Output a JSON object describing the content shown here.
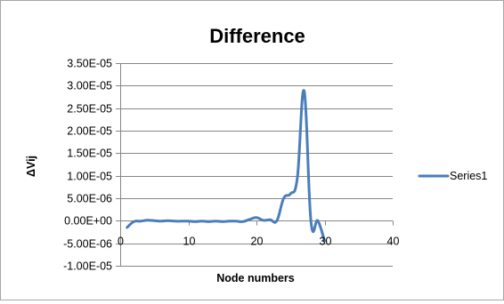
{
  "chart_data": {
    "type": "line",
    "title": "Difference",
    "xlabel": "Node numbers",
    "ylabel": "ΔVij",
    "xlim": [
      0,
      40
    ],
    "ylim": [
      -1e-05,
      3.5e-05
    ],
    "x_ticks": [
      0,
      10,
      20,
      30,
      40
    ],
    "x_tick_labels": [
      "0",
      "10",
      "20",
      "30",
      "40"
    ],
    "y_ticks": [
      -1e-05,
      -5e-06,
      0,
      5e-06,
      1e-05,
      1.5e-05,
      2e-05,
      2.5e-05,
      3e-05,
      3.5e-05
    ],
    "y_tick_labels": [
      "-1.00E-05",
      "-5.00E-06",
      "0.00E+00",
      "5.00E-06",
      "1.00E-05",
      "1.50E-05",
      "2.00E-05",
      "2.50E-05",
      "3.00E-05",
      "3.50E-05"
    ],
    "grid": "horizontal",
    "legend": "right",
    "series": [
      {
        "name": "Series1",
        "color": "#4a7ebb",
        "x": [
          1,
          2,
          3,
          4,
          5,
          6,
          7,
          8,
          9,
          10,
          11,
          12,
          13,
          14,
          15,
          16,
          17,
          18,
          19,
          20,
          21,
          22,
          23,
          24,
          25,
          26,
          27,
          28,
          29,
          30
        ],
        "values": [
          -1.5e-06,
          -2e-07,
          -1e-07,
          1e-07,
          0,
          -1e-07,
          0,
          -1e-07,
          -1e-07,
          -1e-07,
          -2e-07,
          -1e-07,
          -2e-07,
          -1e-07,
          -2e-07,
          -1e-07,
          -1e-07,
          -2e-07,
          3e-07,
          7e-07,
          1e-07,
          2e-07,
          0,
          5e-06,
          6e-06,
          9.5e-06,
          2.88e-05,
          -1e-07,
          0,
          -4.5e-06
        ]
      }
    ]
  }
}
